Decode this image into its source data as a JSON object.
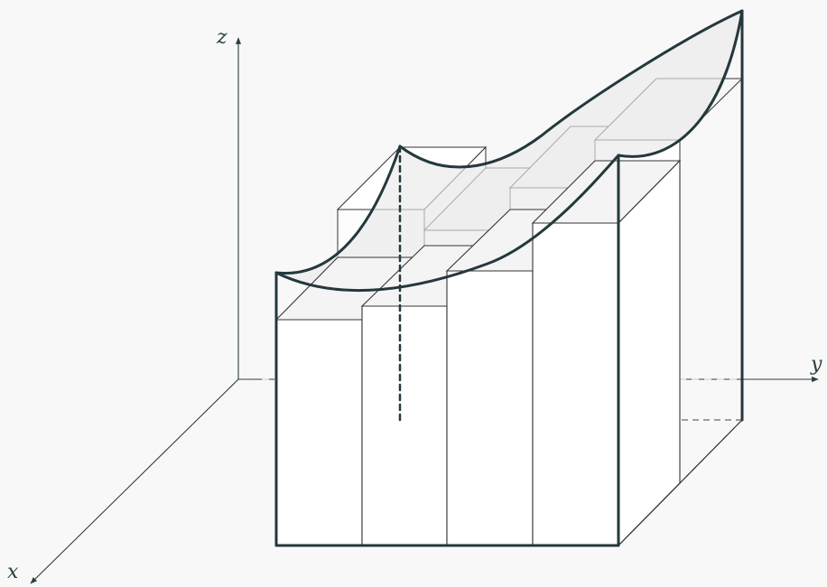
{
  "axes": {
    "x_label": "x",
    "y_label": "y",
    "z_label": "z"
  },
  "colors": {
    "background": "#f8f8f8",
    "axis": "#2c3e44",
    "box_edge": "#333333",
    "surface": "#24383d",
    "box_face": "#ffffff",
    "surface_fill": "#efefef"
  }
}
